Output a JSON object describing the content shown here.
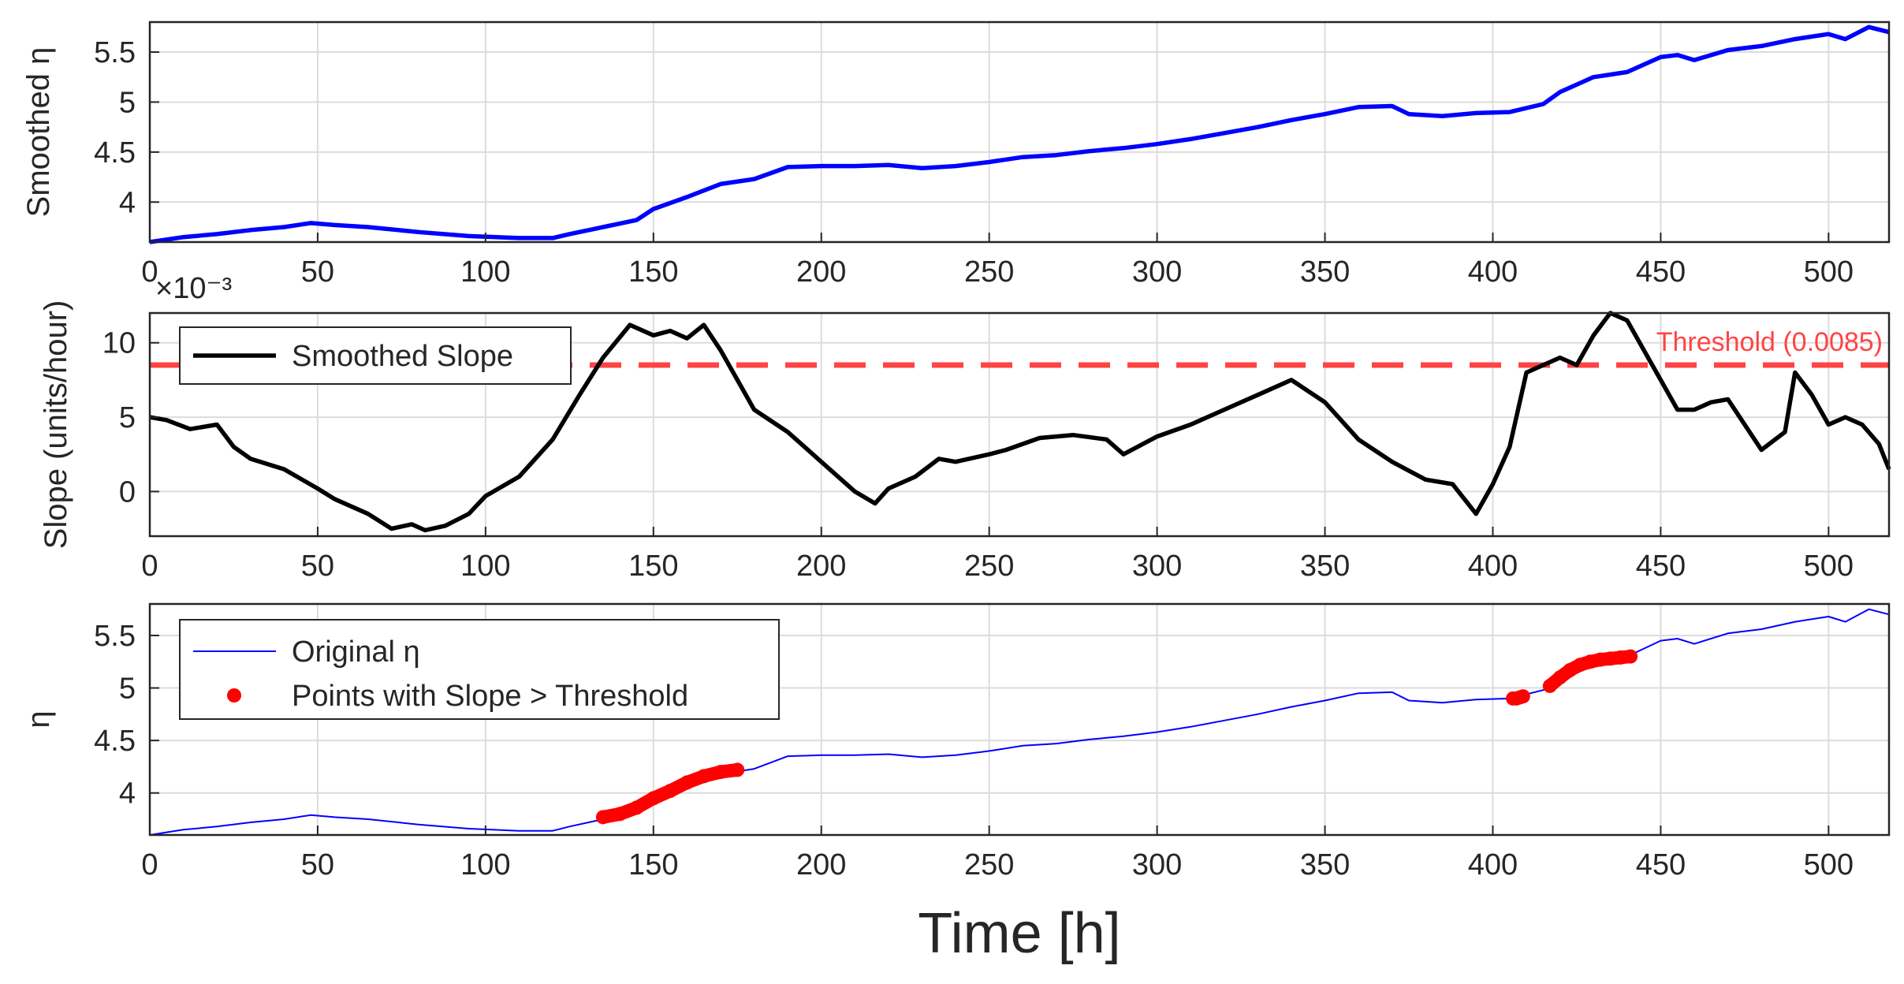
{
  "figure": {
    "xlabel": "Time [h]",
    "x_ticks": [
      "0",
      "50",
      "100",
      "150",
      "200",
      "250",
      "300",
      "350",
      "400",
      "450",
      "500"
    ]
  },
  "chart_data": [
    {
      "type": "line",
      "panel": "top",
      "ylabel": "Smoothed η",
      "xlim": [
        0,
        518
      ],
      "ylim": [
        3.6,
        5.8
      ],
      "x_ticks": [
        0,
        50,
        100,
        150,
        200,
        250,
        300,
        350,
        400,
        450,
        500
      ],
      "y_ticks": [
        4,
        4.5,
        5,
        5.5
      ],
      "y_tick_labels": [
        "4",
        "4.5",
        "5",
        "5.5"
      ],
      "grid": true,
      "series": [
        {
          "name": "Smoothed η",
          "color": "#0000ff",
          "x": [
            0,
            10,
            20,
            30,
            40,
            48,
            55,
            65,
            80,
            95,
            110,
            120,
            125,
            135,
            145,
            150,
            160,
            170,
            180,
            190,
            200,
            210,
            220,
            230,
            240,
            250,
            260,
            270,
            280,
            290,
            300,
            310,
            320,
            330,
            340,
            350,
            360,
            370,
            375,
            385,
            395,
            405,
            415,
            420,
            430,
            440,
            450,
            455,
            460,
            470,
            480,
            490,
            500,
            505,
            512,
            518
          ],
          "y": [
            3.6,
            3.65,
            3.68,
            3.72,
            3.75,
            3.79,
            3.77,
            3.75,
            3.7,
            3.66,
            3.64,
            3.64,
            3.68,
            3.75,
            3.82,
            3.93,
            4.05,
            4.18,
            4.23,
            4.35,
            4.36,
            4.36,
            4.37,
            4.34,
            4.36,
            4.4,
            4.45,
            4.47,
            4.51,
            4.54,
            4.58,
            4.63,
            4.69,
            4.75,
            4.82,
            4.88,
            4.95,
            4.96,
            4.88,
            4.86,
            4.89,
            4.9,
            4.98,
            5.1,
            5.25,
            5.3,
            5.45,
            5.47,
            5.42,
            5.52,
            5.56,
            5.63,
            5.68,
            5.63,
            5.75,
            5.7
          ]
        }
      ]
    },
    {
      "type": "line",
      "panel": "middle",
      "ylabel": "Slope (units/hour)",
      "y_multiplier": "×10⁻³",
      "xlim": [
        0,
        518
      ],
      "ylim": [
        -3,
        12
      ],
      "x_ticks": [
        0,
        50,
        100,
        150,
        200,
        250,
        300,
        350,
        400,
        450,
        500
      ],
      "y_ticks": [
        0,
        5,
        10
      ],
      "y_tick_labels": [
        "0",
        "5",
        "10"
      ],
      "grid": true,
      "legend": {
        "placement": "top-left",
        "entries": [
          "Smoothed Slope"
        ]
      },
      "threshold": {
        "value": 8.5,
        "label": "Threshold (0.0085)",
        "color": "#ff4444",
        "style": "dashed"
      },
      "series": [
        {
          "name": "Smoothed Slope",
          "color": "#000000",
          "x": [
            0,
            5,
            12,
            20,
            25,
            30,
            40,
            50,
            55,
            65,
            72,
            78,
            82,
            88,
            95,
            100,
            110,
            120,
            128,
            135,
            143,
            150,
            155,
            160,
            165,
            170,
            175,
            180,
            190,
            200,
            210,
            216,
            220,
            228,
            235,
            240,
            250,
            255,
            265,
            275,
            285,
            290,
            300,
            310,
            320,
            330,
            340,
            350,
            360,
            370,
            380,
            388,
            395,
            400,
            405,
            410,
            415,
            420,
            425,
            430,
            435,
            440,
            445,
            450,
            455,
            460,
            465,
            470,
            475,
            480,
            487,
            490,
            495,
            500,
            505,
            510,
            515,
            518
          ],
          "y": [
            5,
            4.8,
            4.2,
            4.5,
            3,
            2.2,
            1.5,
            0.2,
            -0.5,
            -1.5,
            -2.5,
            -2.2,
            -2.6,
            -2.3,
            -1.5,
            -0.3,
            1,
            3.5,
            6.5,
            9,
            11.2,
            10.5,
            10.8,
            10.3,
            11.2,
            9.5,
            7.5,
            5.5,
            4,
            2,
            0,
            -0.8,
            0.2,
            1,
            2.2,
            2,
            2.5,
            2.8,
            3.6,
            3.8,
            3.5,
            2.5,
            3.7,
            4.5,
            5.5,
            6.5,
            7.5,
            6,
            3.5,
            2,
            0.8,
            0.5,
            -1.5,
            0.5,
            3,
            8,
            8.5,
            9,
            8.5,
            10.5,
            12,
            11.5,
            9.5,
            7.5,
            5.5,
            5.5,
            6,
            6.2,
            4.5,
            2.8,
            4,
            8,
            6.5,
            4.5,
            5,
            4.5,
            3.2,
            1.5
          ]
        }
      ]
    },
    {
      "type": "line",
      "panel": "bottom",
      "ylabel": "η",
      "xlim": [
        0,
        518
      ],
      "ylim": [
        3.6,
        5.8
      ],
      "x_ticks": [
        0,
        50,
        100,
        150,
        200,
        250,
        300,
        350,
        400,
        450,
        500
      ],
      "y_ticks": [
        4,
        4.5,
        5,
        5.5
      ],
      "y_tick_labels": [
        "4",
        "4.5",
        "5",
        "5.5"
      ],
      "grid": true,
      "legend": {
        "placement": "top-left",
        "entries": [
          "Original η",
          "Points with Slope > Threshold"
        ]
      },
      "series": [
        {
          "name": "Original η",
          "color": "#0000ff",
          "x": [
            0,
            10,
            20,
            30,
            40,
            48,
            55,
            65,
            80,
            95,
            110,
            120,
            125,
            135,
            145,
            150,
            160,
            170,
            180,
            190,
            200,
            210,
            220,
            230,
            240,
            250,
            260,
            270,
            280,
            290,
            300,
            310,
            320,
            330,
            340,
            350,
            360,
            370,
            375,
            385,
            395,
            405,
            415,
            420,
            430,
            440,
            450,
            455,
            460,
            470,
            480,
            490,
            500,
            505,
            512,
            518
          ],
          "y": [
            3.6,
            3.65,
            3.68,
            3.72,
            3.75,
            3.79,
            3.77,
            3.75,
            3.7,
            3.66,
            3.64,
            3.64,
            3.68,
            3.75,
            3.82,
            3.93,
            4.05,
            4.18,
            4.23,
            4.35,
            4.36,
            4.36,
            4.37,
            4.34,
            4.36,
            4.4,
            4.45,
            4.47,
            4.51,
            4.54,
            4.58,
            4.63,
            4.69,
            4.75,
            4.82,
            4.88,
            4.95,
            4.96,
            4.88,
            4.86,
            4.89,
            4.9,
            4.98,
            5.1,
            5.25,
            5.3,
            5.45,
            5.47,
            5.42,
            5.52,
            5.56,
            5.63,
            5.68,
            5.63,
            5.75,
            5.7
          ]
        },
        {
          "name": "Points with Slope > Threshold",
          "type": "scatter",
          "color": "#ff0000",
          "segments": [
            {
              "x_range": [
                135,
                175
              ],
              "x": [
                135,
                140,
                145,
                150,
                155,
                160,
                165,
                170,
                175
              ],
              "y": [
                3.77,
                3.8,
                3.86,
                3.95,
                4.02,
                4.1,
                4.16,
                4.2,
                4.22
              ]
            },
            {
              "x_range": [
                406,
                409
              ],
              "x": [
                406,
                407,
                408,
                409
              ],
              "y": [
                4.9,
                4.9,
                4.91,
                4.92
              ]
            },
            {
              "x_range": [
                417,
                441
              ],
              "x": [
                417,
                420,
                423,
                426,
                429,
                432,
                435,
                438,
                441
              ],
              "y": [
                5.02,
                5.1,
                5.17,
                5.22,
                5.25,
                5.27,
                5.28,
                5.29,
                5.3
              ]
            }
          ]
        }
      ]
    }
  ]
}
